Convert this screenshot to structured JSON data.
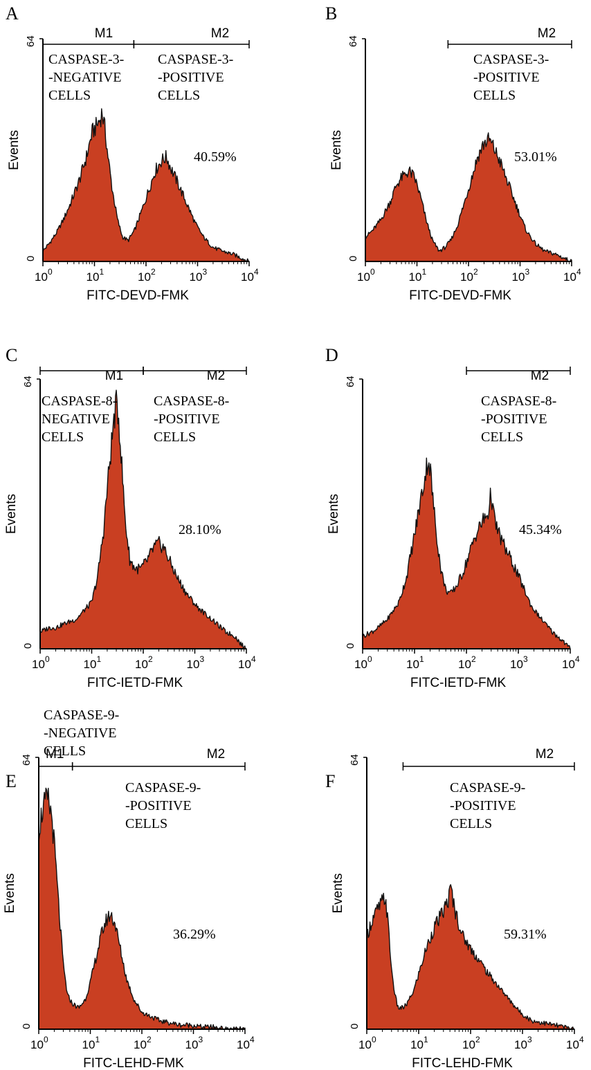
{
  "colors": {
    "fill": "#c93f22",
    "stroke": "#111111",
    "axis": "#000000"
  },
  "chart_data": [
    {
      "panel": "A",
      "type": "area",
      "xscale": "log",
      "xlim": [
        1,
        10000
      ],
      "ylim": [
        0,
        64
      ],
      "xlabel": "FITC-DEVD-FMK",
      "ylabel": "Events",
      "ytick_labels": [
        "0",
        "64"
      ],
      "xtick_labels": [
        "10",
        "10",
        "10",
        "10",
        "10"
      ],
      "xtick_exponents": [
        "0",
        "1",
        "2",
        "3",
        "4"
      ],
      "markers": [
        {
          "name": "M1",
          "from": 1,
          "to": 58
        },
        {
          "name": "M2",
          "from": 58,
          "to": 10000
        }
      ],
      "annotations": {
        "m1": [
          "CASPASE-3-",
          "-NEGATIVE",
          "CELLS"
        ],
        "m2": [
          "CASPASE-3-",
          "-POSITIVE",
          "CELLS"
        ],
        "percent": "40.59%"
      },
      "series": [
        {
          "x": [
            1,
            1.3,
            1.8,
            2.5,
            3.5,
            5,
            7,
            9,
            11,
            13,
            14,
            16,
            18,
            22,
            28,
            35,
            45,
            60,
            80,
            110,
            150,
            200,
            250,
            300,
            400,
            600,
            900,
            1300,
            2000,
            3000,
            5000,
            7000,
            10000
          ],
          "y": [
            3,
            5,
            8,
            12,
            17,
            23,
            30,
            37,
            39,
            41,
            43,
            38,
            31,
            21,
            12,
            7,
            6,
            9,
            14,
            20,
            26,
            29,
            30,
            27,
            23,
            17,
            11,
            7,
            4,
            3,
            2,
            1,
            0
          ]
        }
      ]
    },
    {
      "panel": "B",
      "type": "area",
      "xscale": "log",
      "xlim": [
        1,
        10000
      ],
      "ylim": [
        0,
        64
      ],
      "xlabel": "FITC-DEVD-FMK",
      "ylabel": "Events",
      "ytick_labels": [
        "0",
        "64"
      ],
      "xtick_labels": [
        "10",
        "10",
        "10",
        "10",
        "10"
      ],
      "xtick_exponents": [
        "0",
        "1",
        "2",
        "3",
        "4"
      ],
      "markers": [
        {
          "name": "M2",
          "from": 40,
          "to": 10000
        }
      ],
      "annotations": {
        "m2": [
          "CASPASE-3-",
          "-POSITIVE",
          "CELLS"
        ],
        "percent": "53.01%"
      },
      "series": [
        {
          "x": [
            1,
            1.4,
            2,
            3,
            4,
            5,
            6,
            7,
            8,
            9,
            10,
            12,
            15,
            20,
            27,
            35,
            45,
            60,
            80,
            110,
            150,
            200,
            250,
            300,
            400,
            600,
            900,
            1300,
            2000,
            3000,
            5000,
            7000,
            10000
          ],
          "y": [
            7,
            9,
            12,
            17,
            22,
            24,
            25,
            26,
            25,
            24,
            22,
            18,
            12,
            6,
            3,
            4,
            6,
            10,
            16,
            23,
            30,
            34,
            35,
            33,
            29,
            22,
            15,
            9,
            5,
            3,
            2,
            1,
            0
          ]
        }
      ]
    },
    {
      "panel": "C",
      "type": "area",
      "xscale": "log",
      "xlim": [
        1,
        10000
      ],
      "ylim": [
        0,
        64
      ],
      "xlabel": "FITC-IETD-FMK",
      "ylabel": "Events",
      "ytick_labels": [
        "0",
        "64"
      ],
      "xtick_labels": [
        "10",
        "10",
        "10",
        "10",
        "10"
      ],
      "xtick_exponents": [
        "0",
        "1",
        "2",
        "3",
        "4"
      ],
      "markers": [
        {
          "name": "M1",
          "from": 1,
          "to": 100
        },
        {
          "name": "M2",
          "from": 100,
          "to": 10000
        }
      ],
      "annotations": {
        "m1": [
          "CASPASE-8-",
          "NEGATIVE",
          "CELLS"
        ],
        "m2": [
          "CASPASE-8-",
          "-POSITIVE",
          "CELLS"
        ],
        "percent": "28.10%"
      },
      "series": [
        {
          "x": [
            1,
            1.5,
            2,
            3,
            5,
            7,
            10,
            13,
            17,
            20,
            24,
            28,
            31,
            34,
            38,
            45,
            55,
            70,
            90,
            120,
            160,
            200,
            250,
            320,
            450,
            700,
            1100,
            1700,
            2600,
            4000,
            6000,
            8000,
            10000
          ],
          "y": [
            4,
            5,
            5,
            6,
            7,
            9,
            11,
            17,
            28,
            38,
            48,
            56,
            58,
            54,
            44,
            30,
            21,
            19,
            19,
            21,
            24,
            25,
            24,
            21,
            17,
            13,
            10,
            8,
            6,
            4,
            3,
            1,
            0
          ]
        }
      ]
    },
    {
      "panel": "D",
      "type": "area",
      "xscale": "log",
      "xlim": [
        1,
        10000
      ],
      "ylim": [
        0,
        64
      ],
      "xlabel": "FITC-IETD-FMK",
      "ylabel": "Events",
      "ytick_labels": [
        "0",
        "64"
      ],
      "xtick_labels": [
        "10",
        "10",
        "10",
        "10",
        "10"
      ],
      "xtick_exponents": [
        "0",
        "1",
        "2",
        "3",
        "4"
      ],
      "markers": [
        {
          "name": "M2",
          "from": 100,
          "to": 10000
        }
      ],
      "annotations": {
        "m2": [
          "CASPASE-8-",
          "-POSITIVE",
          "CELLS"
        ],
        "percent": "45.34%"
      },
      "series": [
        {
          "x": [
            1,
            1.5,
            2,
            3,
            5,
            7,
            10,
            13,
            16,
            18,
            20,
            22,
            26,
            32,
            40,
            50,
            65,
            85,
            110,
            150,
            200,
            260,
            300,
            340,
            400,
            550,
            800,
            1200,
            1800,
            2800,
            4500,
            7000,
            10000
          ],
          "y": [
            3,
            4,
            5,
            7,
            11,
            17,
            27,
            35,
            41,
            45,
            43,
            37,
            28,
            19,
            14,
            13,
            15,
            18,
            22,
            27,
            30,
            32,
            37,
            31,
            28,
            24,
            20,
            15,
            10,
            7,
            4,
            2,
            0
          ]
        }
      ]
    },
    {
      "panel": "E",
      "type": "area",
      "xscale": "log",
      "xlim": [
        1,
        10000
      ],
      "ylim": [
        0,
        64
      ],
      "xlabel": "FITC-LEHD-FMK",
      "ylabel": "Events",
      "ytick_labels": [
        "0",
        "64"
      ],
      "xtick_labels": [
        "10",
        "10",
        "10",
        "10",
        "10"
      ],
      "xtick_exponents": [
        "0",
        "1",
        "2",
        "3",
        "4"
      ],
      "markers": [
        {
          "name": "M1",
          "from": 1,
          "to": 4.5
        },
        {
          "name": "M2",
          "from": 4.5,
          "to": 10000
        }
      ],
      "annotations": {
        "m1": [
          "CASPASE-9-",
          "-NEGATIVE",
          "CELLS"
        ],
        "m2": [
          "CASPASE-9-",
          "-POSITIVE",
          "CELLS"
        ],
        "percent": "36.29%"
      },
      "series": [
        {
          "x": [
            1,
            1.2,
            1.5,
            1.8,
            2.1,
            2.5,
            3,
            3.6,
            4.5,
            6,
            8,
            10,
            13,
            17,
            21,
            25,
            30,
            38,
            50,
            70,
            100,
            150,
            220,
            350,
            550,
            900,
            1500,
            2500,
            4000,
            6500,
            10000
          ],
          "y": [
            47,
            52,
            54,
            50,
            40,
            27,
            15,
            8,
            6,
            5,
            7,
            11,
            17,
            23,
            26,
            27,
            25,
            19,
            12,
            7,
            4,
            3,
            2,
            1.5,
            1,
            1,
            0.5,
            0.5,
            0,
            0,
            0
          ]
        }
      ]
    },
    {
      "panel": "F",
      "type": "area",
      "xscale": "log",
      "xlim": [
        1,
        10000
      ],
      "ylim": [
        0,
        64
      ],
      "xlabel": "FITC-LEHD-FMK",
      "ylabel": "Events",
      "ytick_labels": [
        "0",
        "64"
      ],
      "xtick_labels": [
        "10",
        "10",
        "10",
        "10",
        "10"
      ],
      "xtick_exponents": [
        "0",
        "1",
        "2",
        "3",
        "4"
      ],
      "markers": [
        {
          "name": "M2",
          "from": 5,
          "to": 10000
        }
      ],
      "annotations": {
        "m2": [
          "CASPASE-9-",
          "-POSITIVE",
          "CELLS"
        ],
        "percent": "59.31%"
      },
      "series": [
        {
          "x": [
            1,
            1.3,
            1.6,
            2,
            2.3,
            2.6,
            3,
            3.5,
            4,
            5,
            6,
            8,
            10,
            14,
            20,
            28,
            36,
            42,
            50,
            70,
            100,
            150,
            220,
            350,
            550,
            900,
            1500,
            2500,
            4000,
            6500,
            10000
          ],
          "y": [
            22,
            26,
            28,
            30,
            31,
            24,
            14,
            8,
            5,
            5,
            6,
            9,
            13,
            19,
            24,
            27,
            30,
            33,
            28,
            22,
            19,
            16,
            13,
            10,
            7,
            4,
            2,
            1.5,
            1,
            0.5,
            0
          ]
        }
      ]
    }
  ]
}
